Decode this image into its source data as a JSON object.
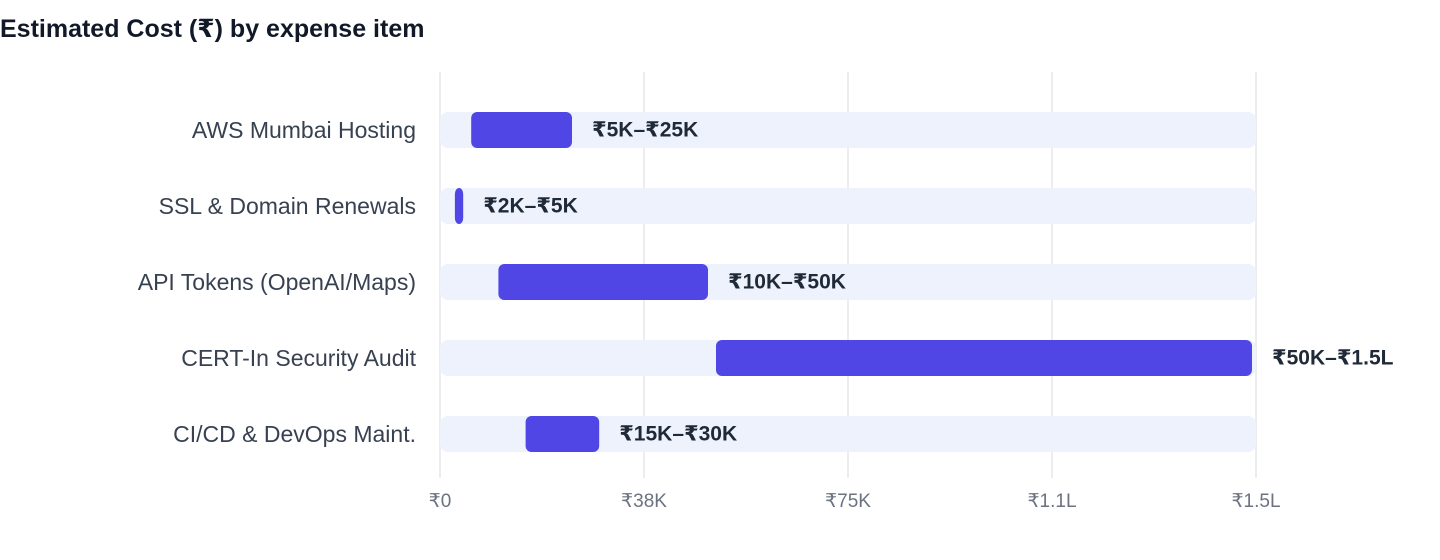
{
  "colors": {
    "bar": "#4f46e5",
    "track": "#eef2fd",
    "grid": "#e5e7eb",
    "title": "#111827",
    "category_text": "#374151",
    "tick_text": "#6b7280",
    "data_label_text": "#1f2937"
  },
  "chart_data": {
    "type": "bar",
    "orientation": "horizontal",
    "style": "floating-range",
    "title": "Estimated Cost (₹) by expense item",
    "xlabel": "",
    "ylabel": "",
    "xlim": [
      0,
      150000
    ],
    "grid": true,
    "legend": "none",
    "x_ticks": [
      {
        "value": 0,
        "label": "₹0"
      },
      {
        "value": 37500,
        "label": "₹38K"
      },
      {
        "value": 75000,
        "label": "₹75K"
      },
      {
        "value": 112500,
        "label": "₹1.1L"
      },
      {
        "value": 150000,
        "label": "₹1.5L"
      }
    ],
    "categories": [
      "AWS Mumbai Hosting",
      "SSL & Domain Renewals",
      "API Tokens (OpenAI/Maps)",
      "CERT-In Security Audit",
      "CI/CD & DevOps Maint."
    ],
    "ranges": [
      {
        "low": 5000,
        "high": 25000,
        "label": "₹5K–₹25K"
      },
      {
        "low": 2000,
        "high": 5000,
        "label": "₹2K–₹5K"
      },
      {
        "low": 10000,
        "high": 50000,
        "label": "₹10K–₹50K"
      },
      {
        "low": 50000,
        "high": 150000,
        "label": "₹50K–₹1.5L"
      },
      {
        "low": 15000,
        "high": 30000,
        "label": "₹15K–₹30K"
      }
    ]
  }
}
